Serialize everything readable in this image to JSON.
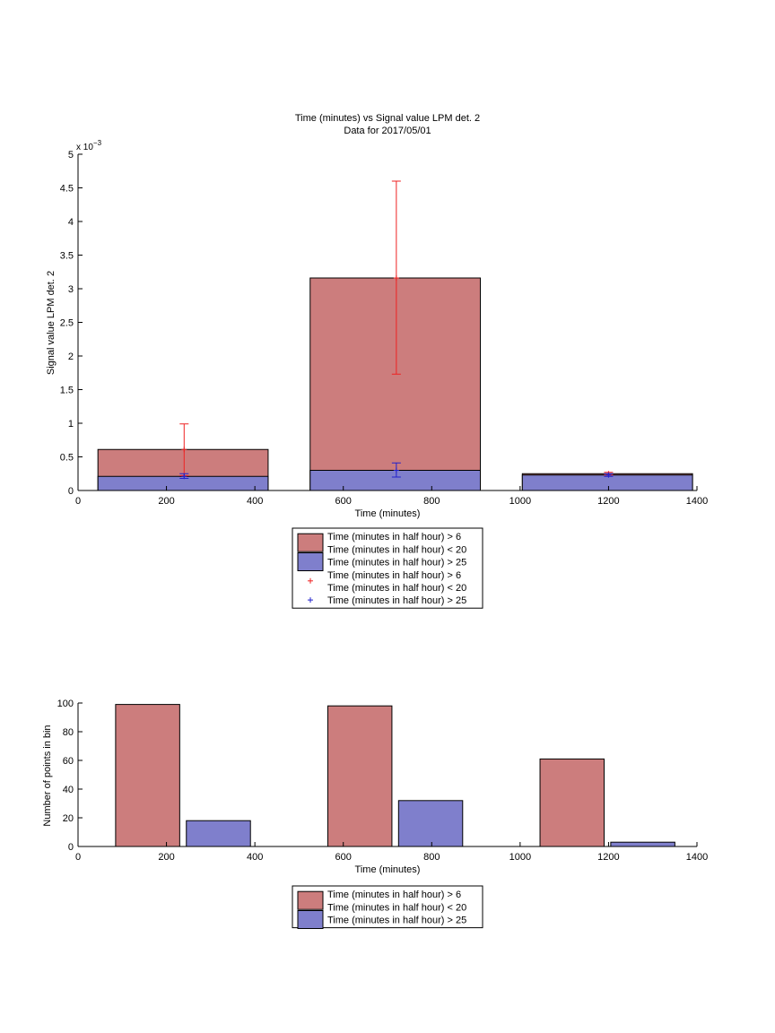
{
  "colors": {
    "red_bar": "#cc7d7d",
    "blue_bar": "#7f7fcc",
    "red_err": "#ee2222",
    "blue_err": "#2222cc",
    "axis": "#000000"
  },
  "chart_data": [
    {
      "type": "bar",
      "title": "Time (minutes) vs Signal value LPM det. 2",
      "subtitle": "Data for 2017/05/01",
      "xlabel": "Time (minutes)",
      "ylabel": "Signal value LPM det. 2",
      "y_exponent_label": "x 10",
      "y_exponent_power": "−3",
      "xlim": [
        0,
        1400
      ],
      "ylim": [
        0,
        5
      ],
      "y_multiplier": 0.001,
      "xticks": [
        "0",
        "200",
        "400",
        "600",
        "800",
        "1000",
        "1200",
        "1400"
      ],
      "xtick_values": [
        0,
        200,
        400,
        600,
        800,
        1000,
        1200,
        1400
      ],
      "yticks": [
        "0",
        "0.5",
        "1",
        "1.5",
        "2",
        "2.5",
        "3",
        "3.5",
        "4",
        "4.5",
        "5"
      ],
      "ytick_values": [
        0,
        0.5,
        1,
        1.5,
        2,
        2.5,
        3,
        3.5,
        4,
        4.5,
        5
      ],
      "bins": [
        {
          "x_start": 45,
          "x_end": 430,
          "center": 240
        },
        {
          "x_start": 525,
          "x_end": 910,
          "center": 720
        },
        {
          "x_start": 1005,
          "x_end": 1390,
          "center": 1200
        }
      ],
      "series": [
        {
          "name": "Time (minutes in half hour) > 6\nTime (minutes in half hour) < 20",
          "color_key": "red_bar",
          "values": [
            0.61,
            3.16,
            0.25
          ]
        },
        {
          "name": "Time (minutes in half hour) > 25",
          "color_key": "blue_bar",
          "values": [
            0.21,
            0.3,
            0.23
          ]
        }
      ],
      "errorbars": [
        {
          "name": "Time (minutes in half hour) > 6\nTime (minutes in half hour) < 20",
          "color_key": "red_err",
          "x": [
            240,
            720,
            1200
          ],
          "y": [
            0.61,
            3.16,
            0.25
          ],
          "low": [
            0.22,
            1.73,
            0.23
          ],
          "high": [
            0.99,
            4.6,
            0.27
          ]
        },
        {
          "name": "Time (minutes in half hour) > 25",
          "color_key": "blue_err",
          "x": [
            240,
            720,
            1200
          ],
          "y": [
            0.21,
            0.3,
            0.23
          ],
          "low": [
            0.18,
            0.2,
            0.21
          ],
          "high": [
            0.25,
            0.41,
            0.25
          ]
        }
      ],
      "legend": [
        {
          "kind": "bar",
          "color_key": "red_bar",
          "lines": [
            "Time (minutes in half hour) > 6",
            "Time (minutes in half hour) < 20"
          ]
        },
        {
          "kind": "bar",
          "color_key": "blue_bar",
          "lines": [
            "Time (minutes in half hour) > 25"
          ]
        },
        {
          "kind": "marker",
          "color_key": "red_err",
          "lines": [
            "Time (minutes in half hour) > 6",
            "Time (minutes in half hour) < 20"
          ]
        },
        {
          "kind": "marker",
          "color_key": "blue_err",
          "lines": [
            "Time (minutes in half hour) > 25"
          ]
        }
      ],
      "legend_position": "below"
    },
    {
      "type": "bar",
      "title": "",
      "xlabel": "Time (minutes)",
      "ylabel": "Number of points in bin",
      "xlim": [
        0,
        1400
      ],
      "ylim": [
        0,
        100
      ],
      "xticks": [
        "0",
        "200",
        "400",
        "600",
        "800",
        "1000",
        "1200",
        "1400"
      ],
      "xtick_values": [
        0,
        200,
        400,
        600,
        800,
        1000,
        1200,
        1400
      ],
      "yticks": [
        "0",
        "20",
        "40",
        "60",
        "80",
        "100"
      ],
      "ytick_values": [
        0,
        20,
        40,
        60,
        80,
        100
      ],
      "series": [
        {
          "name": "Time (minutes in half hour) > 6\nTime (minutes in half hour) < 20",
          "color_key": "red_bar",
          "bars": [
            {
              "x_start": 85,
              "x_end": 230,
              "value": 99
            },
            {
              "x_start": 565,
              "x_end": 710,
              "value": 98
            },
            {
              "x_start": 1045,
              "x_end": 1190,
              "value": 61
            }
          ]
        },
        {
          "name": "Time (minutes in half hour) > 25",
          "color_key": "blue_bar",
          "bars": [
            {
              "x_start": 245,
              "x_end": 390,
              "value": 18
            },
            {
              "x_start": 725,
              "x_end": 870,
              "value": 32
            },
            {
              "x_start": 1205,
              "x_end": 1350,
              "value": 3
            }
          ]
        }
      ],
      "legend": [
        {
          "kind": "bar",
          "color_key": "red_bar",
          "lines": [
            "Time (minutes in half hour) > 6",
            "Time (minutes in half hour) < 20"
          ]
        },
        {
          "kind": "bar",
          "color_key": "blue_bar",
          "lines": [
            "Time (minutes in half hour) > 25"
          ]
        }
      ],
      "legend_position": "below"
    }
  ]
}
